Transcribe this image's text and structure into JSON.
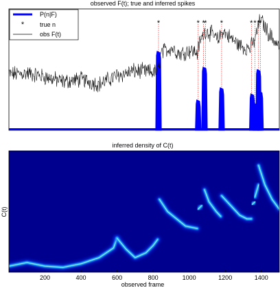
{
  "chart_data": [
    {
      "type": "line",
      "title": "observed F(t); true and inferred spikes",
      "xlabel": "",
      "ylabel": "",
      "xlim": [
        0,
        1500
      ],
      "legend_position": "top-left",
      "legend": [
        "P(n|F)",
        "true n",
        "obs F(t)"
      ],
      "colors": {
        "posterior": "#0000ff",
        "true_spikes": "#ff0000",
        "trace": "#000000"
      },
      "true_spike_frames": [
        830,
        1050,
        1080,
        1090,
        1180,
        1345,
        1365,
        1385,
        1395
      ],
      "posterior_peaks": [
        {
          "x": 830,
          "y": 0.65
        },
        {
          "x": 1050,
          "y": 0.25
        },
        {
          "x": 1085,
          "y": 0.52
        },
        {
          "x": 1180,
          "y": 0.35
        },
        {
          "x": 1350,
          "y": 0.3
        },
        {
          "x": 1370,
          "y": 0.22
        },
        {
          "x": 1385,
          "y": 0.5
        },
        {
          "x": 1396,
          "y": 0.32
        }
      ],
      "trace_points": [
        [
          0,
          0.46
        ],
        [
          100,
          0.47
        ],
        [
          200,
          0.44
        ],
        [
          300,
          0.4
        ],
        [
          400,
          0.42
        ],
        [
          500,
          0.38
        ],
        [
          600,
          0.45
        ],
        [
          700,
          0.49
        ],
        [
          790,
          0.48
        ],
        [
          825,
          0.48
        ],
        [
          845,
          0.64
        ],
        [
          900,
          0.68
        ],
        [
          950,
          0.63
        ],
        [
          1000,
          0.66
        ],
        [
          1045,
          0.64
        ],
        [
          1060,
          0.73
        ],
        [
          1090,
          0.82
        ],
        [
          1120,
          0.8
        ],
        [
          1160,
          0.74
        ],
        [
          1185,
          0.82
        ],
        [
          1230,
          0.76
        ],
        [
          1270,
          0.71
        ],
        [
          1310,
          0.68
        ],
        [
          1340,
          0.68
        ],
        [
          1365,
          0.75
        ],
        [
          1395,
          0.92
        ],
        [
          1440,
          0.8
        ],
        [
          1500,
          0.69
        ]
      ]
    },
    {
      "type": "heatmap",
      "title": "inferred density of C(t)",
      "xlabel": "observed frame",
      "ylabel": "C(t)",
      "xlim": [
        0,
        1500
      ],
      "xticks": [
        200,
        400,
        600,
        800,
        1000,
        1200,
        1400
      ],
      "colormap": "jet",
      "ridge_segments": [
        [
          [
            0,
            0.05
          ],
          [
            100,
            0.08
          ],
          [
            200,
            0.05
          ],
          [
            300,
            0.04
          ],
          [
            400,
            0.07
          ],
          [
            500,
            0.12
          ],
          [
            580,
            0.2
          ],
          [
            600,
            0.28
          ]
        ],
        [
          [
            600,
            0.28
          ],
          [
            650,
            0.19
          ],
          [
            700,
            0.12
          ],
          [
            760,
            0.16
          ],
          [
            800,
            0.22
          ],
          [
            825,
            0.27
          ]
        ],
        [
          [
            835,
            0.6
          ],
          [
            880,
            0.5
          ],
          [
            930,
            0.44
          ],
          [
            980,
            0.38
          ],
          [
            1045,
            0.36
          ]
        ],
        [
          [
            1050,
            0.52
          ],
          [
            1070,
            0.55
          ]
        ],
        [
          [
            1085,
            0.68
          ],
          [
            1110,
            0.58
          ],
          [
            1150,
            0.5
          ],
          [
            1175,
            0.46
          ]
        ],
        [
          [
            1180,
            0.63
          ],
          [
            1230,
            0.55
          ],
          [
            1280,
            0.47
          ],
          [
            1320,
            0.44
          ],
          [
            1345,
            0.44
          ]
        ],
        [
          [
            1350,
            0.56
          ],
          [
            1365,
            0.58
          ]
        ],
        [
          [
            1365,
            0.62
          ],
          [
            1385,
            0.72
          ]
        ],
        [
          [
            1385,
            0.88
          ],
          [
            1420,
            0.72
          ],
          [
            1460,
            0.6
          ],
          [
            1500,
            0.52
          ]
        ]
      ]
    }
  ]
}
